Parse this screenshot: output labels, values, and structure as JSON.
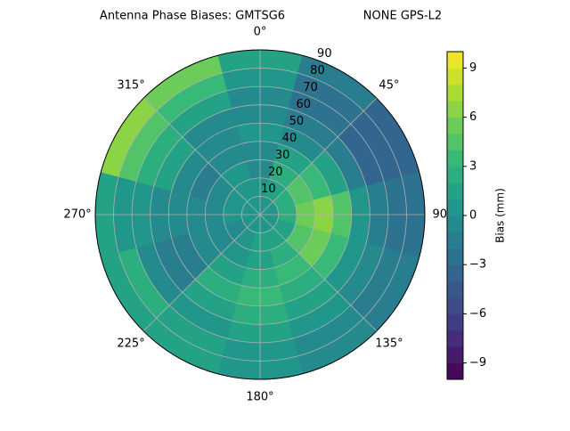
{
  "chart_data": {
    "type": "polar-contour",
    "title": "Antenna Phase Biases: GMTSG6",
    "subtitle": "NONE GPS-L2",
    "azimuths": [
      0,
      30,
      60,
      90,
      120,
      150,
      180,
      210,
      240,
      270,
      300,
      330
    ],
    "radii": [
      5,
      15,
      25,
      35,
      45,
      55,
      65,
      75,
      85
    ],
    "values": [
      [
        0,
        0,
        -1,
        -1,
        0,
        -1,
        -1,
        0,
        1
      ],
      [
        0,
        1,
        2,
        1,
        -1,
        -2,
        -3,
        -3,
        -2
      ],
      [
        0,
        2,
        4,
        3,
        1,
        -2,
        -4,
        -4,
        -4
      ],
      [
        0,
        2,
        5,
        6,
        4,
        0,
        -2,
        -3,
        -3
      ],
      [
        0,
        1,
        4,
        5,
        3,
        0,
        -1,
        -2,
        -2
      ],
      [
        0,
        1,
        2,
        3,
        2,
        1,
        0,
        -1,
        -1
      ],
      [
        0,
        1,
        1,
        2,
        3,
        2,
        1,
        0,
        0
      ],
      [
        0,
        0,
        0,
        1,
        2,
        1,
        0,
        1,
        1
      ],
      [
        0,
        -1,
        -1,
        -1,
        -2,
        -2,
        -1,
        2,
        1
      ],
      [
        0,
        0,
        -1,
        -1,
        -1,
        -1,
        0,
        0,
        1
      ],
      [
        0,
        0,
        -1,
        -2,
        -1,
        1,
        2,
        4,
        6
      ],
      [
        0,
        0,
        0,
        -1,
        -1,
        -1,
        1,
        3,
        5
      ]
    ],
    "rlim": [
      0,
      90
    ],
    "rticks": [
      10,
      20,
      30,
      40,
      50,
      60,
      70,
      80,
      90
    ],
    "thetaticks": [
      {
        "value": 0,
        "label": "0°"
      },
      {
        "value": 45,
        "label": "45°"
      },
      {
        "value": 90,
        "label": "90°"
      },
      {
        "value": 135,
        "label": "135°"
      },
      {
        "value": 180,
        "label": "180°"
      },
      {
        "value": 225,
        "label": "225°"
      },
      {
        "value": 270,
        "label": "270°"
      },
      {
        "value": 315,
        "label": "315°"
      }
    ],
    "colorbar": {
      "label": "Bias (mm)",
      "lim": [
        -10,
        10
      ],
      "ticks": [
        {
          "value": -9,
          "label": "−9"
        },
        {
          "value": -6,
          "label": "−6"
        },
        {
          "value": -3,
          "label": "−3"
        },
        0,
        3,
        6,
        9
      ]
    },
    "colormap": "viridis",
    "grid": true
  }
}
